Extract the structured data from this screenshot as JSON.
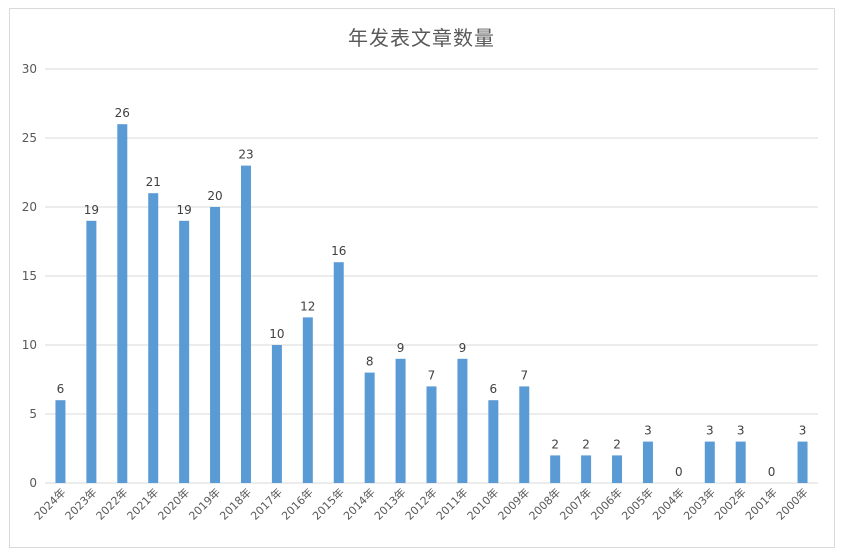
{
  "chart_data": {
    "type": "bar",
    "title": "年发表文章数量",
    "xlabel": "",
    "ylabel": "",
    "ylim": [
      0,
      30
    ],
    "yticks": [
      0,
      5,
      10,
      15,
      20,
      25,
      30
    ],
    "grid": true,
    "legend": "none",
    "bar_color": "#5B9BD5",
    "categories": [
      "2024年",
      "2023年",
      "2022年",
      "2021年",
      "2020年",
      "2019年",
      "2018年",
      "2017年",
      "2016年",
      "2015年",
      "2014年",
      "2013年",
      "2012年",
      "2011年",
      "2010年",
      "2009年",
      "2008年",
      "2007年",
      "2006年",
      "2005年",
      "2004年",
      "2003年",
      "2002年",
      "2001年",
      "2000年"
    ],
    "values": [
      6,
      19,
      26,
      21,
      19,
      20,
      23,
      10,
      12,
      16,
      8,
      9,
      7,
      9,
      6,
      7,
      2,
      2,
      2,
      3,
      0,
      3,
      3,
      0,
      3
    ]
  }
}
